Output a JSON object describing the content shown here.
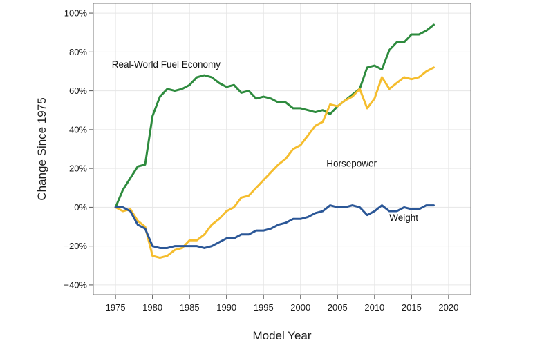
{
  "chart_data": {
    "type": "line",
    "title": "",
    "xlabel": "Model Year",
    "ylabel": "Change Since 1975",
    "xlim": [
      1972,
      2023
    ],
    "ylim": [
      -45,
      105
    ],
    "xticks": [
      1975,
      1980,
      1985,
      1990,
      1995,
      2000,
      2005,
      2010,
      2015,
      2020
    ],
    "yticks": [
      -40,
      -20,
      0,
      20,
      40,
      60,
      80,
      100
    ],
    "ytick_labels": [
      "−40%",
      "−20%",
      "0%",
      "20%",
      "40%",
      "60%",
      "80%",
      "100%"
    ],
    "grid": true,
    "x": [
      1975,
      1976,
      1977,
      1978,
      1979,
      1980,
      1981,
      1982,
      1983,
      1984,
      1985,
      1986,
      1987,
      1988,
      1989,
      1990,
      1991,
      1992,
      1993,
      1994,
      1995,
      1996,
      1997,
      1998,
      1999,
      2000,
      2001,
      2002,
      2003,
      2004,
      2005,
      2006,
      2007,
      2008,
      2009,
      2010,
      2011,
      2012,
      2013,
      2014,
      2015,
      2016,
      2017,
      2018
    ],
    "series": [
      {
        "name": "Real-World Fuel Economy",
        "color": "#2e8b3e",
        "values": [
          0,
          9,
          15,
          21,
          22,
          47,
          57,
          61,
          60,
          61,
          63,
          67,
          68,
          67,
          64,
          62,
          63,
          59,
          60,
          56,
          57,
          56,
          54,
          54,
          51,
          51,
          50,
          49,
          50,
          48,
          52,
          55,
          58,
          61,
          72,
          73,
          71,
          81,
          85,
          85,
          89,
          89,
          91,
          94
        ]
      },
      {
        "name": "Horsepower",
        "color": "#f5bd2e",
        "values": [
          0,
          -2,
          -1,
          -7,
          -10,
          -25,
          -26,
          -25,
          -22,
          -21,
          -17,
          -17,
          -14,
          -9,
          -6,
          -2,
          0,
          5,
          6,
          10,
          14,
          18,
          22,
          25,
          30,
          32,
          37,
          42,
          44,
          53,
          52,
          55,
          57,
          61,
          51,
          56,
          67,
          61,
          64,
          67,
          66,
          67,
          70,
          72
        ]
      },
      {
        "name": "Weight",
        "color": "#2b5797",
        "values": [
          0,
          0,
          -2,
          -9,
          -11,
          -20,
          -21,
          -21,
          -20,
          -20,
          -20,
          -20,
          -21,
          -20,
          -18,
          -16,
          -16,
          -14,
          -14,
          -12,
          -12,
          -11,
          -9,
          -8,
          -6,
          -6,
          -5,
          -3,
          -2,
          1,
          0,
          0,
          1,
          0,
          -4,
          -2,
          1,
          -2,
          -2,
          0,
          -1,
          -1,
          1,
          1
        ]
      }
    ],
    "annotations": [
      {
        "text": "Real-World Fuel Economy",
        "x": 1974.5,
        "y": 72
      },
      {
        "text": "Horsepower",
        "x": 2003.5,
        "y": 21
      },
      {
        "text": "Weight",
        "x": 2012,
        "y": -7
      }
    ]
  }
}
